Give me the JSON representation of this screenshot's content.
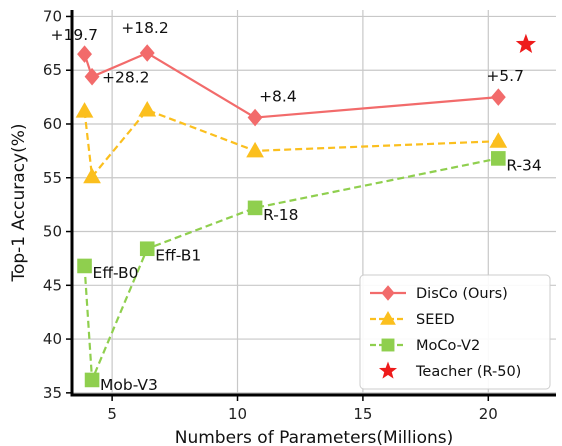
{
  "chart_data": {
    "type": "line",
    "title": "",
    "xlabel": "Numbers of Parameters(Millions)",
    "ylabel": "Top-1 Accuracy(%)",
    "xlim": [
      3.4,
      22.7
    ],
    "ylim": [
      34.8,
      70.6
    ],
    "xticks": [
      5,
      10,
      15,
      20
    ],
    "yticks": [
      35,
      40,
      45,
      50,
      55,
      60,
      65,
      70
    ],
    "grid": true,
    "legend_position": "bottom-right",
    "series": [
      {
        "name": "DisCo (Ours)",
        "color": "#f26b6b",
        "marker": "diamond",
        "linestyle": "solid",
        "x": [
          3.9,
          4.2,
          6.4,
          10.7,
          20.4
        ],
        "y": [
          66.5,
          64.4,
          66.6,
          60.6,
          62.5
        ]
      },
      {
        "name": "SEED",
        "color": "#fbbf1e",
        "marker": "triangle",
        "linestyle": "dashed",
        "x": [
          3.9,
          4.2,
          6.4,
          10.7,
          20.4
        ],
        "y": [
          61.2,
          55.1,
          61.3,
          57.5,
          58.4
        ]
      },
      {
        "name": "MoCo-V2",
        "color": "#8fcf4e",
        "marker": "square",
        "linestyle": "dashed",
        "x": [
          3.9,
          4.2,
          6.4,
          10.7,
          20.4
        ],
        "y": [
          46.8,
          36.2,
          48.4,
          52.2,
          56.8
        ]
      },
      {
        "name": "Teacher (R-50)",
        "color": "#ee1b1b",
        "marker": "star",
        "linestyle": "none",
        "x": [
          21.5
        ],
        "y": [
          67.4
        ]
      }
    ],
    "annotations": [
      {
        "text": "+19.7",
        "x": 3.9,
        "y": 66.5,
        "dx": -34,
        "dy": -14
      },
      {
        "text": "+28.2",
        "x": 4.2,
        "y": 64.4,
        "dx": 10,
        "dy": 6
      },
      {
        "text": "+18.2",
        "x": 6.4,
        "y": 66.6,
        "dx": -26,
        "dy": -20
      },
      {
        "text": "+8.4",
        "x": 10.7,
        "y": 60.6,
        "dx": 4,
        "dy": -16
      },
      {
        "text": "+5.7",
        "x": 20.4,
        "y": 62.5,
        "dx": -12,
        "dy": -16
      },
      {
        "text": "Eff-B0",
        "x": 3.9,
        "y": 46.8,
        "dx": 8,
        "dy": 12
      },
      {
        "text": "Mob-V3",
        "x": 4.2,
        "y": 36.2,
        "dx": 8,
        "dy": 10
      },
      {
        "text": "Eff-B1",
        "x": 6.4,
        "y": 48.4,
        "dx": 8,
        "dy": 12
      },
      {
        "text": "R-18",
        "x": 10.7,
        "y": 52.2,
        "dx": 8,
        "dy": 12
      },
      {
        "text": "R-34",
        "x": 20.4,
        "y": 56.8,
        "dx": 8,
        "dy": 12
      }
    ]
  }
}
